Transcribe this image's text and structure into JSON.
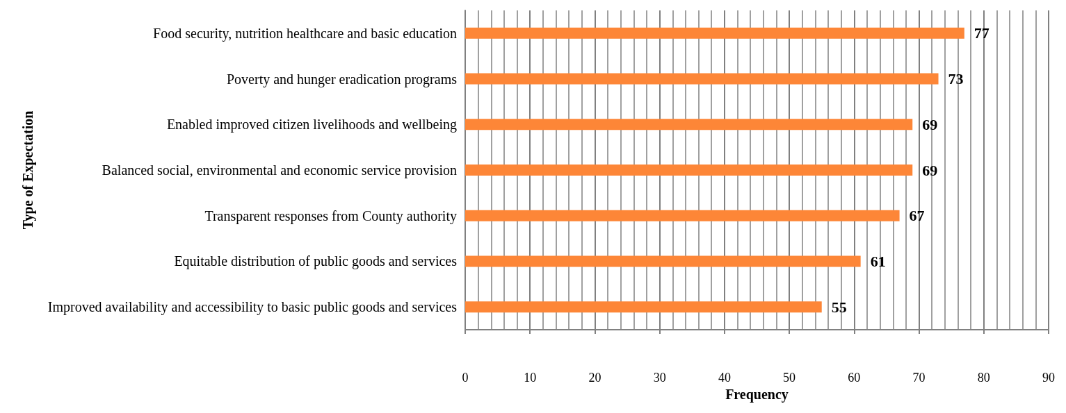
{
  "chart_data": {
    "type": "bar",
    "orientation": "horizontal",
    "xlabel": "Frequency",
    "ylabel": "Type of Expectation",
    "categories": [
      "Food security, nutrition healthcare and basic education",
      "Poverty and hunger eradication programs",
      "Enabled improved citizen livelihoods and wellbeing",
      "Balanced social, environmental and economic service provision",
      "Transparent responses from County authority",
      "Equitable distribution of public goods and services",
      "Improved availability and accessibility to basic public goods and services"
    ],
    "values": [
      77,
      73,
      69,
      69,
      67,
      61,
      55
    ],
    "color": "#fd8637",
    "xlim": [
      0,
      90
    ],
    "xticks": [
      0,
      10,
      20,
      30,
      40,
      50,
      60,
      70,
      80,
      90
    ],
    "grid": "x",
    "data_labels": true
  }
}
